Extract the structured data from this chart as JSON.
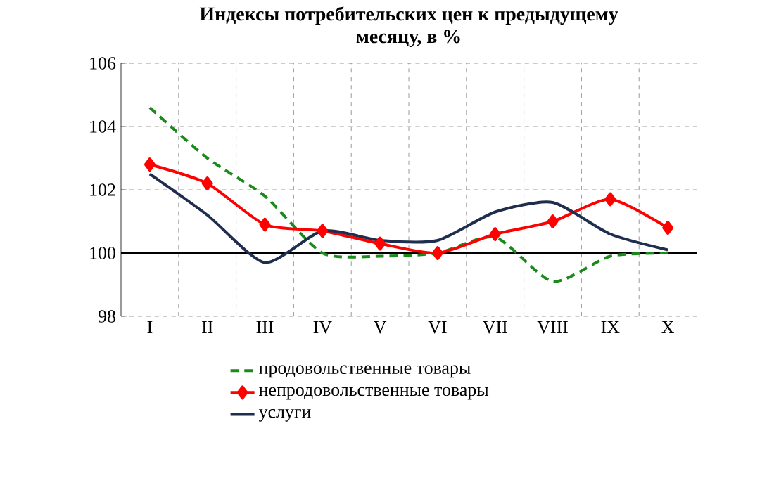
{
  "chart_data": {
    "type": "line",
    "title": "Индексы потребительских цен к предыдущему месяцу, в %",
    "categories": [
      "I",
      "II",
      "III",
      "IV",
      "V",
      "VI",
      "VII",
      "VIII",
      "IX",
      "X"
    ],
    "series": [
      {
        "name": "продовольственные товары",
        "color": "#1a8a1a",
        "line_style": "dashed",
        "marker": "none",
        "values": [
          104.6,
          103.0,
          101.8,
          100.0,
          99.9,
          100.0,
          100.5,
          99.1,
          99.9,
          100.0
        ]
      },
      {
        "name": "непродовольственные товары",
        "color": "#ff0000",
        "line_style": "solid",
        "marker": "diamond",
        "values": [
          102.8,
          102.2,
          100.9,
          100.7,
          100.3,
          100.0,
          100.6,
          101.0,
          101.7,
          100.8
        ]
      },
      {
        "name": "услуги",
        "color": "#1f2d4f",
        "line_style": "solid",
        "marker": "none",
        "values": [
          102.5,
          101.2,
          99.7,
          100.7,
          100.4,
          100.4,
          101.3,
          101.6,
          100.6,
          100.1
        ]
      }
    ],
    "ylim": [
      98,
      106
    ],
    "yticks": [
      98,
      100,
      102,
      104,
      106
    ],
    "grid": true,
    "legend": "bottom",
    "ref_lines": [
      {
        "axis": "y",
        "value": 100,
        "color": "#000000"
      }
    ]
  }
}
